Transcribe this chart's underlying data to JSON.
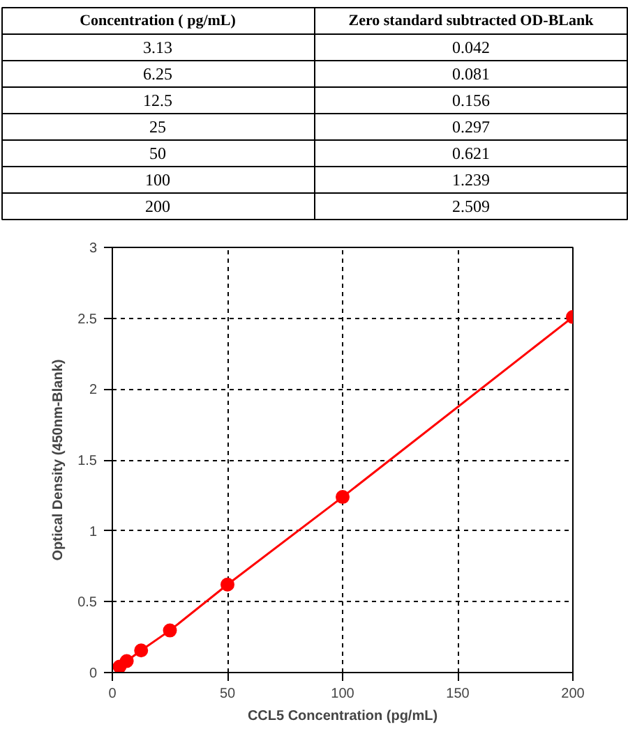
{
  "chart_data": {
    "type": "line",
    "xlabel": "CCL5 Concentration (pg/mL)",
    "ylabel": "Optical Density (450nm-Blank)",
    "annotations": [
      "Concentration ( pg/mL)",
      "Zero standard subtracted OD-BLank",
      "3.13",
      "0.042",
      "6.25",
      "0.081",
      "12.5",
      "0.156",
      "25",
      "0.297",
      "50",
      "0.621",
      "100",
      "1.239",
      "200",
      "2.509"
    ],
    "x": [
      3.13,
      6.25,
      12.5,
      25,
      50,
      100,
      200
    ],
    "series": [
      {
        "color": "#ff0000",
        "values": [
          0.042,
          0.081,
          0.156,
          0.297,
          0.621,
          1.239,
          2.509
        ]
      }
    ],
    "xlim": [
      0,
      200
    ],
    "xticks": [
      0,
      50,
      100,
      150,
      200
    ],
    "ylim": [
      0,
      3
    ],
    "yticks": [
      0,
      0.5,
      1,
      1.5,
      2,
      2.5,
      3
    ],
    "grid": true,
    "marker": "circle",
    "line_style": "solid"
  }
}
